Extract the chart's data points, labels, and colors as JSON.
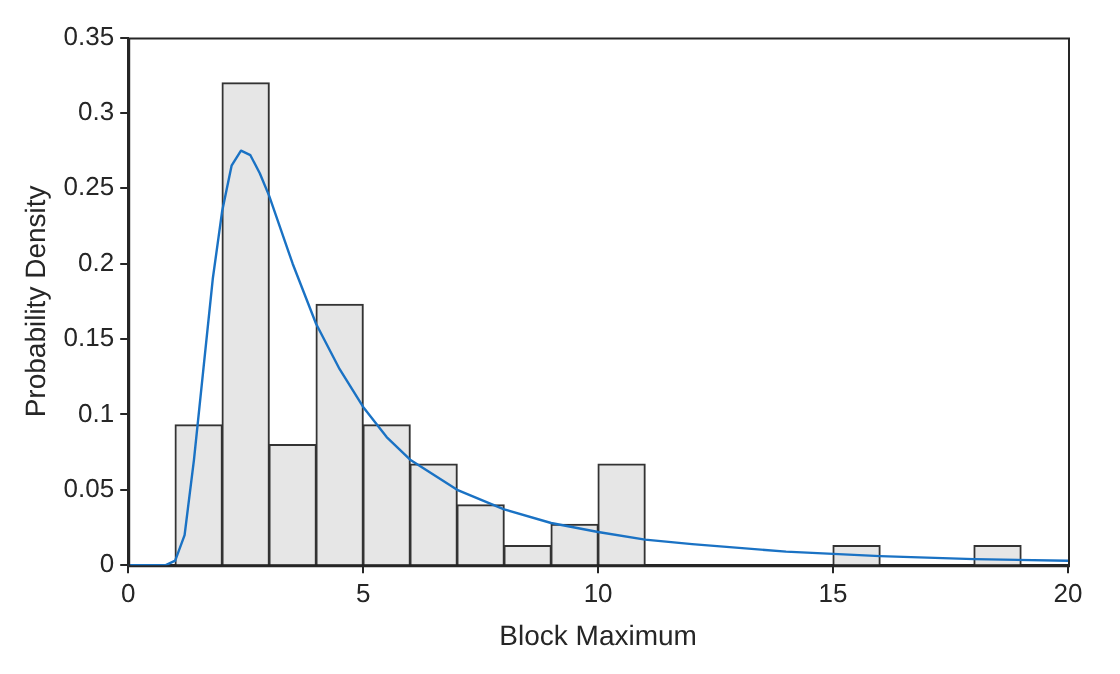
{
  "chart_data": {
    "type": "histogram",
    "xlabel": "Block Maximum",
    "ylabel": "Probability Density",
    "bins": [
      1,
      2,
      3,
      4,
      5,
      6,
      7,
      8,
      9,
      10,
      11,
      12,
      13,
      14,
      15,
      16,
      17,
      18,
      19
    ],
    "values": [
      0.093,
      0.32,
      0.08,
      0.173,
      0.093,
      0.067,
      0.04,
      0.013,
      0.027,
      0.067,
      0,
      0,
      0,
      0,
      0.013,
      0,
      0,
      0.013
    ],
    "color": "#e6e6e6",
    "series": [
      {
        "type": "line",
        "color": "#1a72c4",
        "x": [
          0,
          0.8,
          1.0,
          1.2,
          1.4,
          1.6,
          1.8,
          2.0,
          2.2,
          2.4,
          2.6,
          2.8,
          3.0,
          3.5,
          4.0,
          4.5,
          5,
          5.5,
          6,
          7,
          8,
          9,
          10,
          11,
          12,
          14,
          16,
          18,
          20
        ],
        "values": [
          0,
          0,
          0.003,
          0.02,
          0.07,
          0.13,
          0.19,
          0.235,
          0.265,
          0.275,
          0.272,
          0.26,
          0.245,
          0.2,
          0.16,
          0.13,
          0.105,
          0.085,
          0.07,
          0.05,
          0.037,
          0.028,
          0.022,
          0.017,
          0.014,
          0.009,
          0.006,
          0.004,
          0.003
        ]
      }
    ],
    "xlim": [
      0,
      20
    ],
    "xticks": [
      0,
      5,
      10,
      15,
      20
    ],
    "ylim": [
      0,
      0.35
    ],
    "yticks": [
      0,
      0.05,
      0.1,
      0.15,
      0.2,
      0.25,
      0.3,
      0.35
    ],
    "grid": false,
    "legend": false,
    "marker": "none",
    "line_style": "solid"
  }
}
